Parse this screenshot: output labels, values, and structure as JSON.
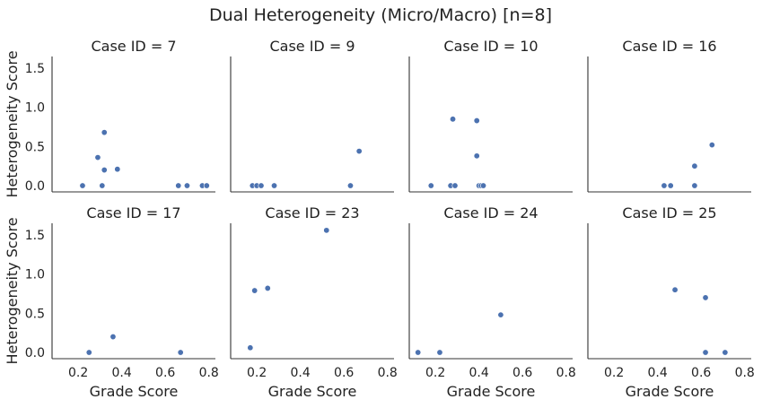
{
  "chart_data": {
    "type": "scatter",
    "title": "Dual Heterogeneity (Micro/Macro) [n=8]",
    "xlabel": "Grade Score",
    "ylabel": "Heterogeneity Score",
    "xlim": [
      0.08,
      0.83
    ],
    "ylim": [
      -0.08,
      1.65
    ],
    "xticks": [
      "0.2",
      "0.4",
      "0.6",
      "0.8"
    ],
    "xtick_values": [
      0.2,
      0.4,
      0.6,
      0.8
    ],
    "yticks": [
      "0.0",
      "0.5",
      "1.0",
      "1.5"
    ],
    "ytick_values": [
      0.0,
      0.5,
      1.0,
      1.5
    ],
    "grid": false,
    "marker_color": "#4c72b0",
    "panels": [
      {
        "title": "Case ID = 7",
        "x": [
          0.22,
          0.29,
          0.31,
          0.32,
          0.32,
          0.38,
          0.66,
          0.7,
          0.77,
          0.79
        ],
        "y": [
          0.0,
          0.36,
          0.0,
          0.2,
          0.68,
          0.21,
          0.0,
          0.0,
          0.0,
          0.0
        ]
      },
      {
        "title": "Case ID = 9",
        "x": [
          0.18,
          0.2,
          0.22,
          0.28,
          0.63,
          0.67
        ],
        "y": [
          0.0,
          0.0,
          0.0,
          0.0,
          0.0,
          0.44
        ]
      },
      {
        "title": "Case ID = 10",
        "x": [
          0.18,
          0.27,
          0.28,
          0.29,
          0.39,
          0.39,
          0.4,
          0.41,
          0.42
        ],
        "y": [
          0.0,
          0.0,
          0.85,
          0.0,
          0.83,
          0.38,
          0.0,
          0.0,
          0.0
        ]
      },
      {
        "title": "Case ID = 16",
        "x": [
          0.43,
          0.46,
          0.57,
          0.57,
          0.65
        ],
        "y": [
          0.0,
          0.0,
          0.0,
          0.25,
          0.52
        ]
      },
      {
        "title": "Case ID = 17",
        "x": [
          0.25,
          0.36,
          0.67
        ],
        "y": [
          0.0,
          0.2,
          0.0
        ]
      },
      {
        "title": "Case ID = 23",
        "x": [
          0.17,
          0.19,
          0.25,
          0.52
        ],
        "y": [
          0.06,
          0.79,
          0.82,
          1.56
        ]
      },
      {
        "title": "Case ID = 24",
        "x": [
          0.12,
          0.22,
          0.5
        ],
        "y": [
          0.0,
          0.0,
          0.48
        ]
      },
      {
        "title": "Case ID = 25",
        "x": [
          0.48,
          0.62,
          0.62,
          0.71
        ],
        "y": [
          0.8,
          0.7,
          0.0,
          0.0
        ]
      }
    ]
  }
}
